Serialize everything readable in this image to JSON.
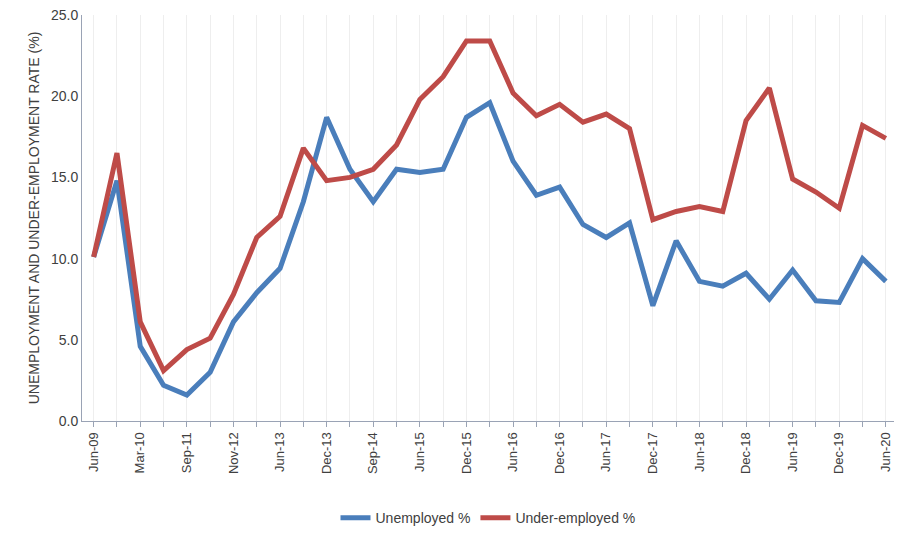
{
  "chart_data": {
    "type": "line",
    "y_label": "UNEMPLOYMENT AND UNDER-EMPLOYMENT RATE (%)",
    "categories": [
      "Jun-09",
      null,
      "Mar-10",
      null,
      "Sep-11",
      null,
      "Nov-12",
      null,
      "Jun-13",
      null,
      "Dec-13",
      null,
      "Sep-14",
      null,
      "Jun-15",
      null,
      "Dec-15",
      null,
      "Jun-16",
      null,
      "Dec-16",
      null,
      "Jun-17",
      null,
      "Dec-17",
      null,
      "Jun-18",
      null,
      "Dec-18",
      null,
      "Jun-19",
      null,
      "Dec-19",
      null,
      "Jun-20"
    ],
    "series": [
      {
        "name": "Unemployed %",
        "color": "#4a7ebb",
        "values": [
          10.1,
          14.8,
          4.6,
          2.2,
          1.6,
          3.0,
          6.1,
          7.9,
          9.4,
          13.5,
          18.7,
          15.5,
          13.5,
          15.5,
          15.3,
          15.5,
          18.7,
          19.6,
          16.0,
          13.9,
          14.4,
          12.1,
          11.3,
          12.2,
          7.1,
          11.1,
          8.6,
          8.3,
          9.1,
          7.5,
          9.3,
          7.4,
          7.3,
          10.0,
          8.6
        ]
      },
      {
        "name": "Under-employed %",
        "color": "#be4b48",
        "values": [
          10.1,
          16.5,
          6.1,
          3.1,
          4.4,
          5.1,
          7.8,
          11.3,
          12.6,
          16.8,
          14.8,
          15.0,
          15.5,
          17.0,
          19.8,
          21.2,
          23.4,
          23.4,
          20.2,
          18.8,
          19.5,
          18.4,
          18.9,
          18.0,
          12.4,
          12.9,
          13.2,
          12.9,
          18.5,
          20.5,
          14.9,
          14.1,
          13.1,
          18.2,
          17.4
        ]
      }
    ],
    "ylim": [
      0,
      25
    ],
    "yticks": [
      {
        "value": 0,
        "label": "0.0"
      },
      {
        "value": 5,
        "label": "5.0"
      },
      {
        "value": 10,
        "label": "10.0"
      },
      {
        "value": 15,
        "label": "15.0"
      },
      {
        "value": 20,
        "label": "20.0"
      },
      {
        "value": 25,
        "label": "25.0"
      }
    ],
    "grid": true,
    "legend": "bottom"
  }
}
